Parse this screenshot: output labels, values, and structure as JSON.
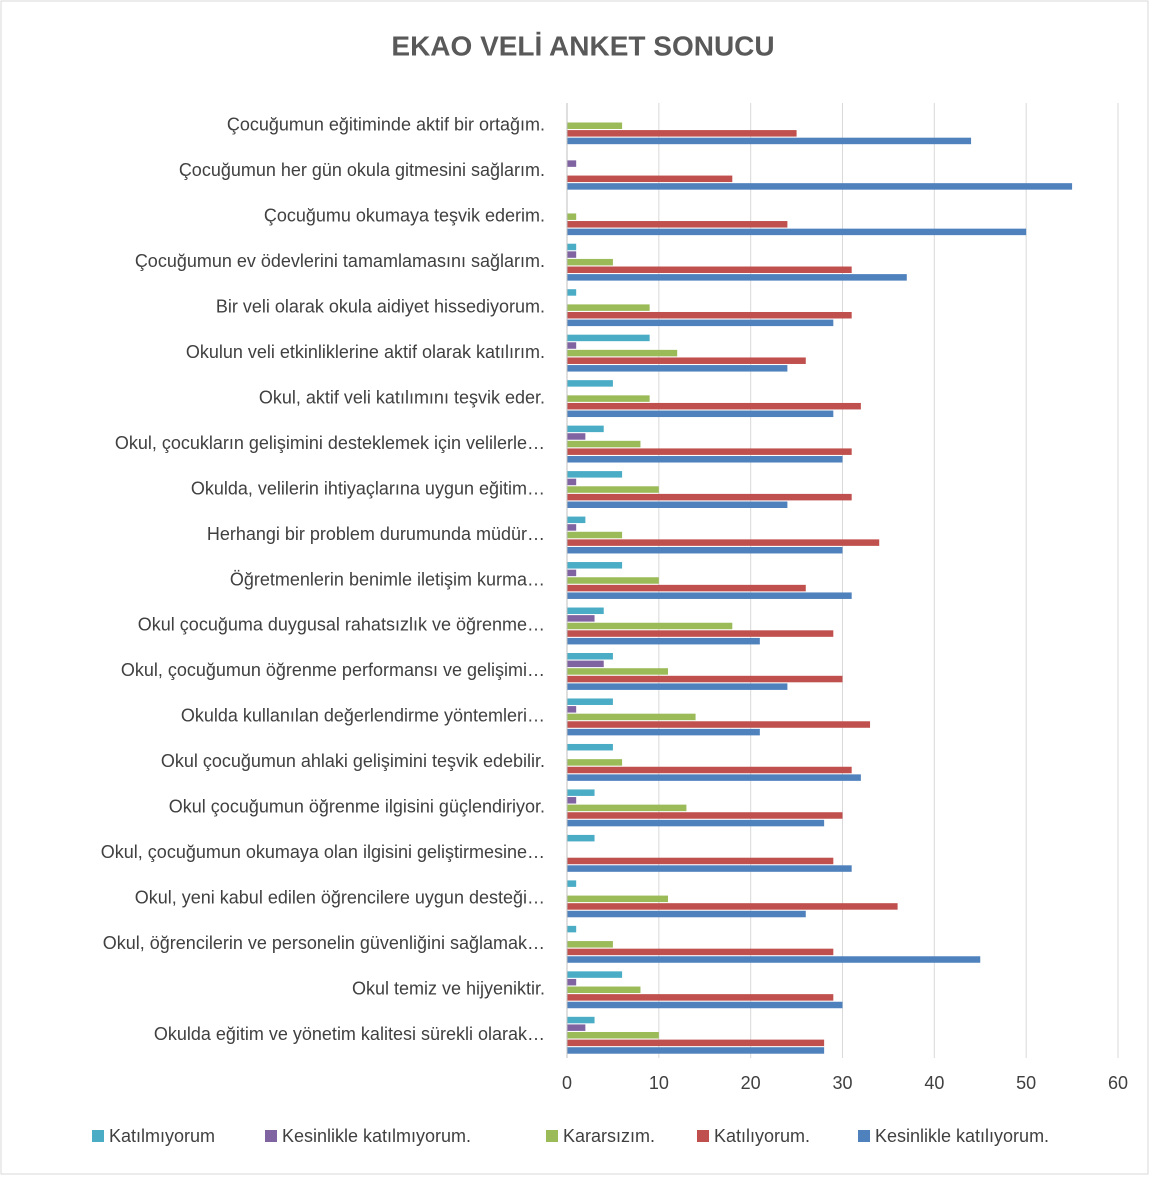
{
  "chart_data": {
    "type": "hbar",
    "title": "EKAO VELİ ANKET SONUCU",
    "categories": [
      "Çocuğumun eğitiminde aktif bir ortağım.",
      "Çocuğumun her gün okula gitmesini sağlarım.",
      "Çocuğumu okumaya teşvik ederim.",
      "Çocuğumun ev ödevlerini tamamlamasını sağlarım.",
      "Bir veli olarak okula aidiyet hissediyorum.",
      "Okulun veli etkinliklerine aktif olarak katılırım.",
      "Okul, aktif veli katılımını teşvik eder.",
      "Okul, çocukların gelişimini desteklemek için velilerle…",
      "Okulda, velilerin ihtiyaçlarına uygun eğitim…",
      "Herhangi bir problem durumunda müdür…",
      "Öğretmenlerin benimle iletişim kurma…",
      "Okul çocuğuma duygusal rahatsızlık ve öğrenme…",
      "Okul, çocuğumun öğrenme performansı ve gelişimi…",
      "Okulda kullanılan değerlendirme yöntemleri…",
      "Okul çocuğumun ahlaki gelişimini teşvik edebilir.",
      "Okul çocuğumun öğrenme ilgisini güçlendiriyor.",
      "Okul, çocuğumun okumaya olan ilgisini geliştirmesine…",
      "Okul, yeni kabul edilen öğrencilere uygun desteği…",
      "Okul, öğrencilerin ve personelin güvenliğini sağlamak…",
      "Okul temiz ve hijyeniktir.",
      "Okulda eğitim ve yönetim kalitesi sürekli olarak…"
    ],
    "series": [
      {
        "name": "Katılmıyorum",
        "color": "#4bacc6",
        "values": [
          0,
          0,
          0,
          1,
          1,
          9,
          5,
          4,
          6,
          2,
          6,
          4,
          5,
          5,
          5,
          3,
          3,
          1,
          1,
          6,
          3
        ]
      },
      {
        "name": "Kesinlikle katılmıyorum.",
        "color": "#8064a2",
        "values": [
          0,
          1,
          0,
          1,
          0,
          1,
          0,
          2,
          1,
          1,
          1,
          3,
          4,
          1,
          0,
          1,
          0,
          0,
          0,
          1,
          2
        ]
      },
      {
        "name": "Kararsızım.",
        "color": "#9bbb59",
        "values": [
          6,
          0,
          1,
          5,
          9,
          12,
          9,
          8,
          10,
          6,
          10,
          18,
          11,
          14,
          6,
          13,
          0,
          11,
          5,
          8,
          10
        ]
      },
      {
        "name": "Katılıyorum.",
        "color": "#c0504d",
        "values": [
          25,
          18,
          24,
          31,
          31,
          26,
          32,
          31,
          31,
          34,
          26,
          29,
          30,
          33,
          31,
          30,
          29,
          36,
          29,
          29,
          28
        ]
      },
      {
        "name": "Kesinlikle katılıyorum.",
        "color": "#4f81bd",
        "values": [
          44,
          55,
          50,
          37,
          29,
          24,
          29,
          30,
          24,
          30,
          31,
          21,
          24,
          21,
          32,
          28,
          31,
          26,
          45,
          30,
          28
        ]
      }
    ],
    "xlim": [
      0,
      60
    ],
    "xticks": [
      0,
      10,
      20,
      30,
      40,
      50,
      60
    ],
    "grid": true
  }
}
